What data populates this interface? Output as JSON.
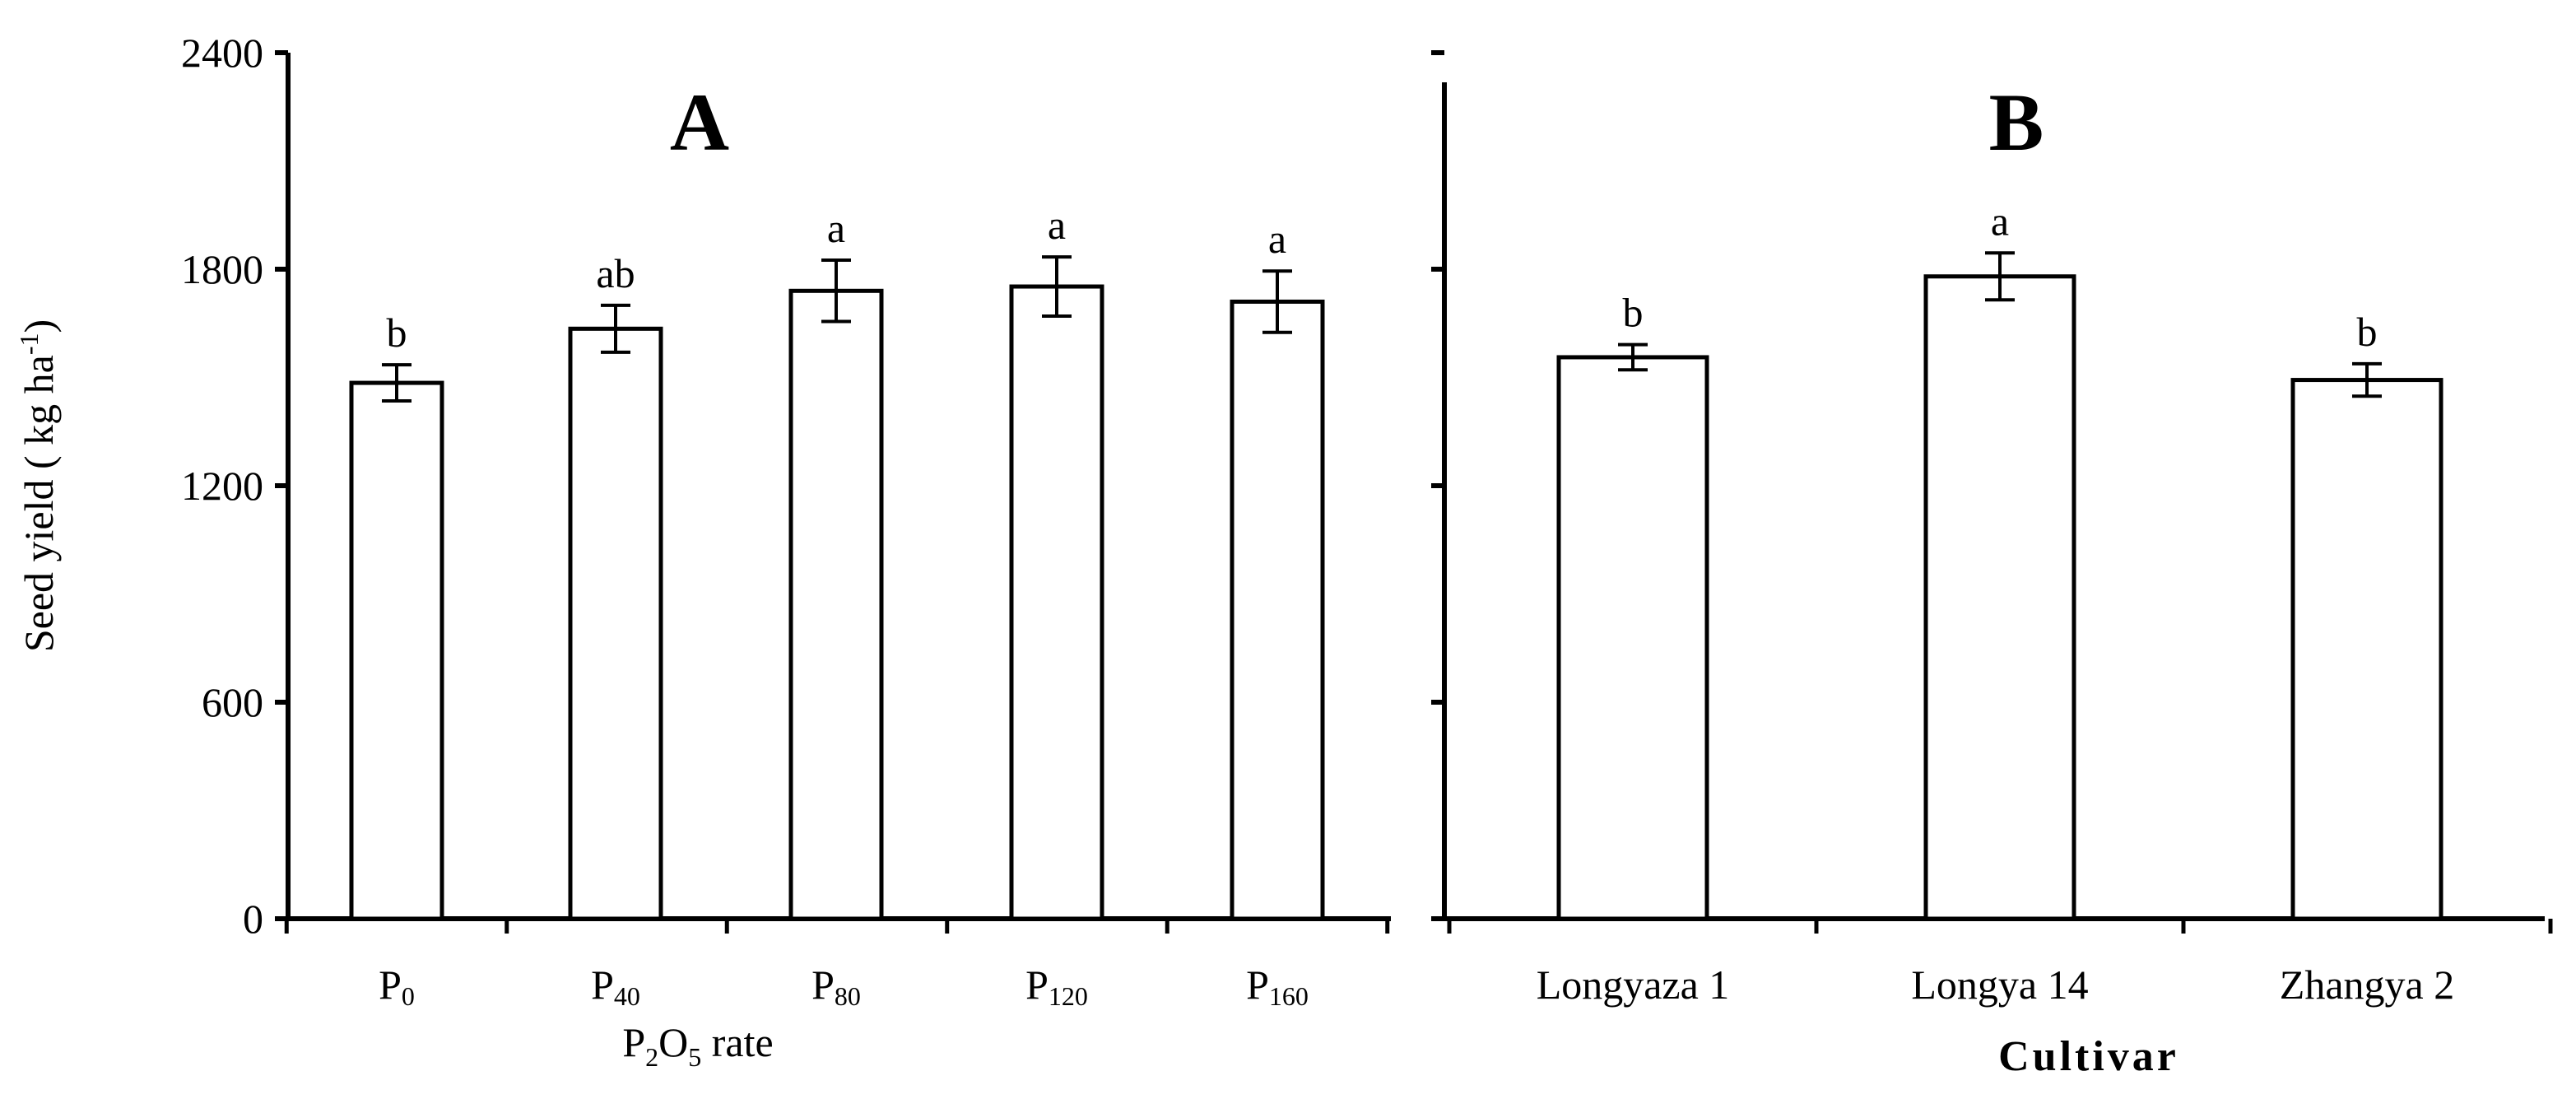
{
  "chart_data": [
    {
      "panel": "A",
      "type": "bar",
      "xlabel": "P2O5 rate",
      "xlabel_parts": {
        "base1": "P",
        "sub1": "2",
        "base2": "O",
        "sub2": "5",
        "rest": " rate"
      },
      "ylabel": "Seed  yield ( kg ha-1)",
      "ylabel_parts": {
        "main": "Seed  yield ( kg ha",
        "sup": "-1",
        "end": ")"
      },
      "ylim": [
        0,
        2400
      ],
      "yticks": [
        0,
        600,
        1200,
        1800,
        2400
      ],
      "categories": [
        "P0",
        "P40",
        "P80",
        "P120",
        "P160"
      ],
      "category_parts": [
        {
          "base": "P",
          "sub": "0"
        },
        {
          "base": "P",
          "sub": "40"
        },
        {
          "base": "P",
          "sub": "80"
        },
        {
          "base": "P",
          "sub": "120"
        },
        {
          "base": "P",
          "sub": "160"
        }
      ],
      "values": [
        1485,
        1635,
        1740,
        1752,
        1710
      ],
      "errors": [
        50,
        65,
        85,
        82,
        85
      ],
      "significance": [
        "b",
        "ab",
        "a",
        "a",
        "a"
      ]
    },
    {
      "panel": "B",
      "type": "bar",
      "xlabel": "Cultivar",
      "ylim": [
        0,
        2400
      ],
      "yticks": [
        0,
        600,
        1200,
        1800,
        2400
      ],
      "categories": [
        "Longyaza 1",
        "Longya  14",
        "Zhangya 2"
      ],
      "values": [
        1556,
        1780,
        1493
      ],
      "errors": [
        35,
        65,
        45
      ],
      "significance": [
        "b",
        "a",
        "b"
      ]
    }
  ]
}
